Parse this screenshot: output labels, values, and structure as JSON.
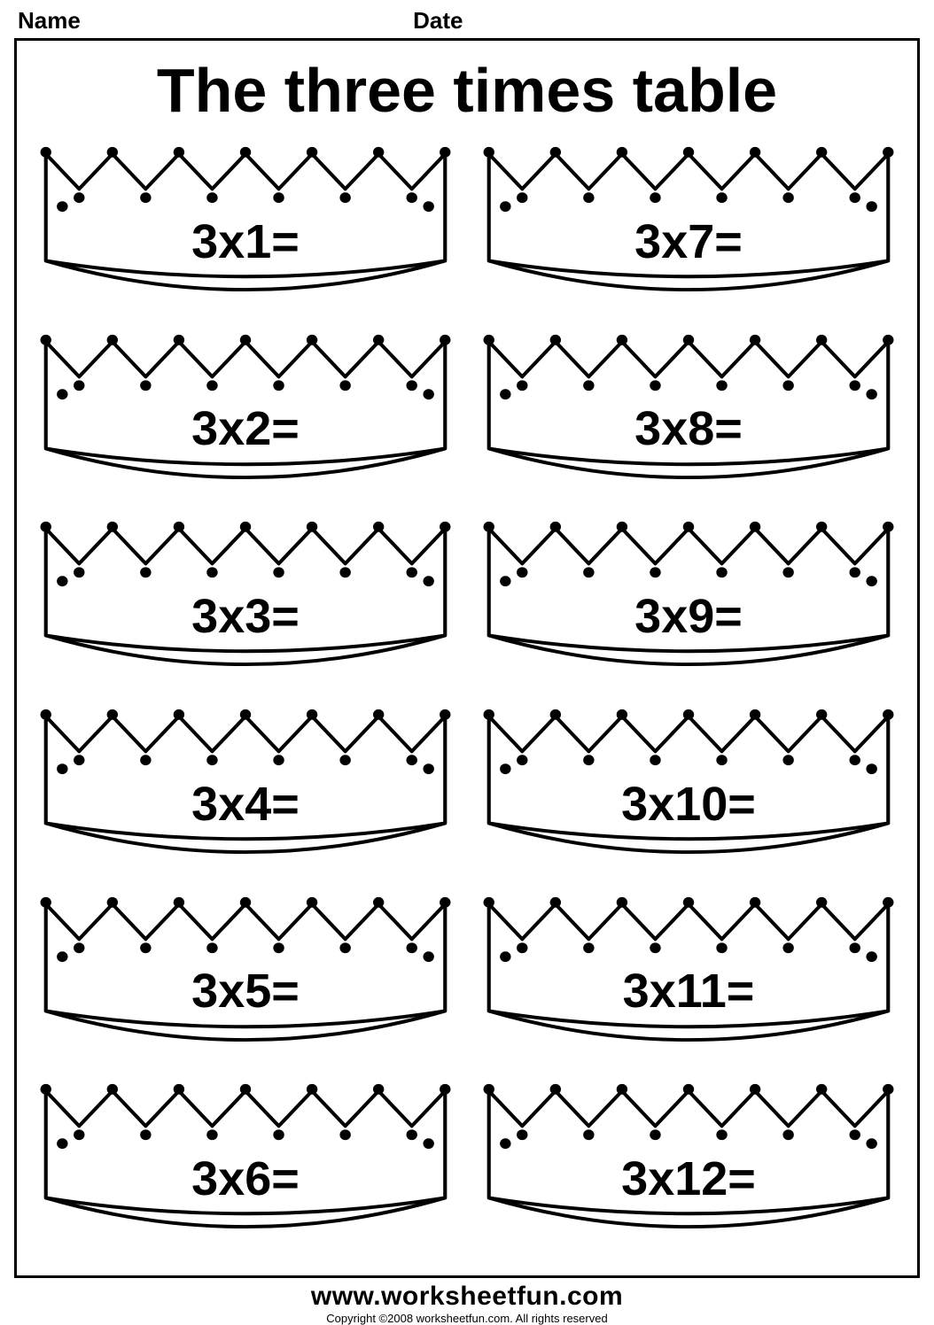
{
  "header": {
    "name_label": "Name",
    "date_label": "Date"
  },
  "worksheet": {
    "title": "The three times table",
    "problems_left": [
      "3x1=",
      "3x2=",
      "3x3=",
      "3x4=",
      "3x5=",
      "3x6="
    ],
    "problems_right": [
      "3x7=",
      "3x8=",
      "3x9=",
      "3x10=",
      "3x11=",
      "3x12="
    ],
    "crown": {
      "stroke_color": "#000000",
      "fill_color": "#ffffff",
      "stroke_width": 4,
      "dot_color": "#000000",
      "dot_radius": 6,
      "num_points": 7
    }
  },
  "footer": {
    "url": "www.worksheetfun.com",
    "copyright": "Copyright ©2008 worksheetfun.com. All rights reserved"
  },
  "colors": {
    "background": "#ffffff",
    "text": "#000000",
    "border": "#000000"
  }
}
